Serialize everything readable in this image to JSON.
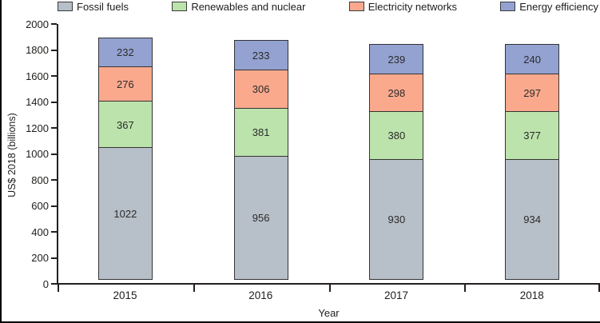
{
  "chart_data": {
    "type": "bar",
    "subtype": "stacked-vertical",
    "title": "",
    "xlabel": "Year",
    "ylabel": "US$ 2018 (billions)",
    "categories": [
      "2015",
      "2016",
      "2017",
      "2018"
    ],
    "series": [
      {
        "name": "Fossil fuels",
        "color": "#b7bfc8",
        "values": [
          1022,
          956,
          930,
          934
        ]
      },
      {
        "name": "Renewables and nuclear",
        "color": "#bbe3ab",
        "values": [
          367,
          381,
          380,
          377
        ]
      },
      {
        "name": "Electricity networks",
        "color": "#fba98d",
        "values": [
          276,
          306,
          298,
          297
        ]
      },
      {
        "name": "Energy efficiency",
        "color": "#93a2d1",
        "values": [
          232,
          233,
          239,
          240
        ]
      }
    ],
    "stack_order_bottom_to_top": [
      "Fossil fuels",
      "Renewables and nuclear",
      "Electricity networks",
      "Energy efficiency"
    ],
    "ylim": [
      0,
      2000
    ],
    "yticks": [
      0,
      200,
      400,
      600,
      800,
      1000,
      1200,
      1400,
      1600,
      1800,
      2000
    ],
    "grid": "off",
    "legend_position": "top",
    "bar_value_labels_visible": true,
    "axis_color": "#231f20",
    "segment_border_color": "#343434"
  }
}
